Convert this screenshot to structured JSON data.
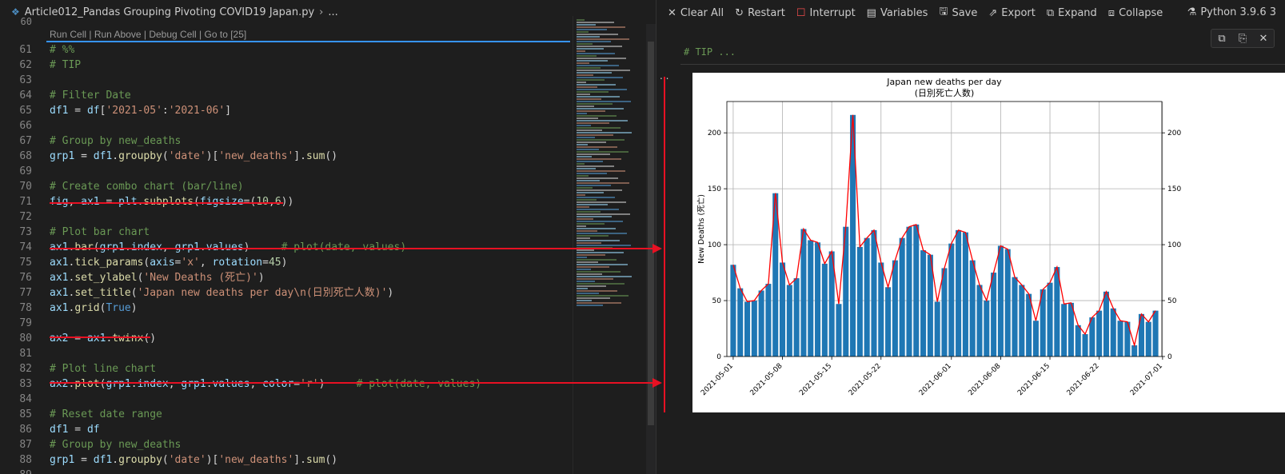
{
  "tab": {
    "filename": "Article012_Pandas Grouping Pivoting COVID19 Japan.py",
    "breadcrumb": "..."
  },
  "codelens": {
    "run_cell": "Run Cell",
    "run_above": "Run Above",
    "debug_cell": "Debug Cell",
    "goto": "Go to [25]",
    "sep": " | "
  },
  "prev_line_num": "60",
  "code_lines": [
    {
      "n": "61",
      "t": [
        [
          "# %%",
          "c"
        ]
      ]
    },
    {
      "n": "62",
      "t": [
        [
          "# TIP",
          "c"
        ]
      ]
    },
    {
      "n": "63",
      "t": []
    },
    {
      "n": "64",
      "t": [
        [
          "# Filter Date",
          "c"
        ]
      ]
    },
    {
      "n": "65",
      "t": [
        [
          "df1",
          "v"
        ],
        [
          " = ",
          "p"
        ],
        [
          "df",
          "v"
        ],
        [
          "[",
          "p"
        ],
        [
          "'2021-05'",
          "s"
        ],
        [
          ":",
          "p"
        ],
        [
          "'2021-06'",
          "s"
        ],
        [
          "]",
          "p"
        ]
      ]
    },
    {
      "n": "66",
      "t": []
    },
    {
      "n": "67",
      "t": [
        [
          "# Group by new_deaths",
          "c"
        ]
      ]
    },
    {
      "n": "68",
      "t": [
        [
          "grp1",
          "v"
        ],
        [
          " = ",
          "p"
        ],
        [
          "df1",
          "v"
        ],
        [
          ".",
          "p"
        ],
        [
          "groupby",
          "f"
        ],
        [
          "(",
          "p"
        ],
        [
          "'date'",
          "s"
        ],
        [
          ")[",
          "p"
        ],
        [
          "'new_deaths'",
          "s"
        ],
        [
          "].",
          "p"
        ],
        [
          "sum",
          "f"
        ],
        [
          "()",
          "p"
        ]
      ]
    },
    {
      "n": "69",
      "t": []
    },
    {
      "n": "70",
      "t": [
        [
          "# Create combo chart (bar/line)",
          "c"
        ]
      ]
    },
    {
      "n": "71",
      "t": [
        [
          "fig",
          "v"
        ],
        [
          ", ",
          "p"
        ],
        [
          "ax1",
          "v"
        ],
        [
          " = ",
          "p"
        ],
        [
          "plt",
          "v"
        ],
        [
          ".",
          "p"
        ],
        [
          "subplots",
          "f"
        ],
        [
          "(",
          "p"
        ],
        [
          "figsize",
          "v"
        ],
        [
          "=(",
          "p"
        ],
        [
          "10",
          "n"
        ],
        [
          ",",
          "p"
        ],
        [
          "6",
          "n"
        ],
        [
          "))",
          "p"
        ]
      ]
    },
    {
      "n": "72",
      "t": []
    },
    {
      "n": "73",
      "t": [
        [
          "# Plot bar chart",
          "c"
        ]
      ]
    },
    {
      "n": "74",
      "t": [
        [
          "ax1",
          "v"
        ],
        [
          ".",
          "p"
        ],
        [
          "bar",
          "f"
        ],
        [
          "(",
          "p"
        ],
        [
          "grp1",
          "v"
        ],
        [
          ".",
          "p"
        ],
        [
          "index",
          "v"
        ],
        [
          ", ",
          "p"
        ],
        [
          "grp1",
          "v"
        ],
        [
          ".",
          "p"
        ],
        [
          "values",
          "v"
        ],
        [
          ")",
          "p"
        ],
        [
          "     # plot(date, values)",
          "c"
        ]
      ]
    },
    {
      "n": "75",
      "t": [
        [
          "ax1",
          "v"
        ],
        [
          ".",
          "p"
        ],
        [
          "tick_params",
          "f"
        ],
        [
          "(",
          "p"
        ],
        [
          "axis",
          "v"
        ],
        [
          "=",
          "p"
        ],
        [
          "'x'",
          "s"
        ],
        [
          ", ",
          "p"
        ],
        [
          "rotation",
          "v"
        ],
        [
          "=",
          "p"
        ],
        [
          "45",
          "n"
        ],
        [
          ")",
          "p"
        ]
      ]
    },
    {
      "n": "76",
      "t": [
        [
          "ax1",
          "v"
        ],
        [
          ".",
          "p"
        ],
        [
          "set_ylabel",
          "f"
        ],
        [
          "(",
          "p"
        ],
        [
          "'New Deaths (死亡)'",
          "s"
        ],
        [
          ")",
          "p"
        ]
      ]
    },
    {
      "n": "77",
      "t": [
        [
          "ax1",
          "v"
        ],
        [
          ".",
          "p"
        ],
        [
          "set_title",
          "f"
        ],
        [
          "(",
          "p"
        ],
        [
          "'Japan new deaths per day\\n(日別死亡人数)'",
          "s"
        ],
        [
          ")",
          "p"
        ]
      ]
    },
    {
      "n": "78",
      "t": [
        [
          "ax1",
          "v"
        ],
        [
          ".",
          "p"
        ],
        [
          "grid",
          "f"
        ],
        [
          "(",
          "p"
        ],
        [
          "True",
          "k"
        ],
        [
          ")",
          "p"
        ]
      ]
    },
    {
      "n": "79",
      "t": []
    },
    {
      "n": "80",
      "t": [
        [
          "ax2",
          "v"
        ],
        [
          " = ",
          "p"
        ],
        [
          "ax1",
          "v"
        ],
        [
          ".",
          "p"
        ],
        [
          "twinx",
          "f"
        ],
        [
          "()",
          "p"
        ]
      ]
    },
    {
      "n": "81",
      "t": []
    },
    {
      "n": "82",
      "t": [
        [
          "# Plot line chart",
          "c"
        ]
      ]
    },
    {
      "n": "83",
      "t": [
        [
          "ax2",
          "v"
        ],
        [
          ".",
          "p"
        ],
        [
          "plot",
          "f"
        ],
        [
          "(",
          "p"
        ],
        [
          "grp1",
          "v"
        ],
        [
          ".",
          "p"
        ],
        [
          "index",
          "v"
        ],
        [
          ", ",
          "p"
        ],
        [
          "grp1",
          "v"
        ],
        [
          ".",
          "p"
        ],
        [
          "values",
          "v"
        ],
        [
          ", ",
          "p"
        ],
        [
          "color",
          "v"
        ],
        [
          "=",
          "p"
        ],
        [
          "'r'",
          "s"
        ],
        [
          ")",
          "p"
        ],
        [
          "     # plot(date, values)",
          "c"
        ]
      ]
    },
    {
      "n": "84",
      "t": []
    },
    {
      "n": "85",
      "t": [
        [
          "# Reset date range",
          "c"
        ]
      ]
    },
    {
      "n": "86",
      "t": [
        [
          "df1",
          "v"
        ],
        [
          " = ",
          "p"
        ],
        [
          "df",
          "v"
        ]
      ]
    },
    {
      "n": "87",
      "t": [
        [
          "# Group by new_deaths",
          "c"
        ]
      ]
    },
    {
      "n": "88",
      "t": [
        [
          "grp1",
          "v"
        ],
        [
          " = ",
          "p"
        ],
        [
          "df1",
          "v"
        ],
        [
          ".",
          "p"
        ],
        [
          "groupby",
          "f"
        ],
        [
          "(",
          "p"
        ],
        [
          "'date'",
          "s"
        ],
        [
          ")[",
          "p"
        ],
        [
          "'new_deaths'",
          "s"
        ],
        [
          "].",
          "p"
        ],
        [
          "sum",
          "f"
        ],
        [
          "()",
          "p"
        ]
      ]
    },
    {
      "n": "89",
      "t": []
    }
  ],
  "toolbar": {
    "clear_all": "Clear All",
    "restart": "Restart",
    "interrupt": "Interrupt",
    "variables": "Variables",
    "save": "Save",
    "export": "Export",
    "expand": "Expand",
    "collapse": "Collapse",
    "kernel": "Python 3.9.6 3"
  },
  "cell_header": "# TIP ...",
  "cell_dots": "...",
  "colors": {
    "accent": "#3794ff",
    "annotation": "#e81123",
    "bar": "#1f77b4",
    "line": "#ff0000"
  },
  "chart_data": {
    "type": "bar",
    "title": "Japan new deaths per day",
    "subtitle": "(日別死亡人数)",
    "ylabel": "New Deaths (死亡)",
    "ylim": [
      0,
      228
    ],
    "yticks": [
      0,
      50,
      100,
      150,
      200
    ],
    "grid": true,
    "secondary_axis": {
      "type": "line",
      "color": "#ff0000",
      "ylim": [
        0,
        228
      ],
      "yticks": [
        0,
        50,
        100,
        150,
        200
      ]
    },
    "x_start": "2021-05-01",
    "xticks": [
      "2021-05-01",
      "2021-05-08",
      "2021-05-15",
      "2021-05-22",
      "2021-06-01",
      "2021-06-08",
      "2021-06-15",
      "2021-06-22",
      "2021-07-01"
    ],
    "values": [
      82,
      61,
      49,
      50,
      59,
      65,
      146,
      84,
      64,
      70,
      114,
      104,
      102,
      83,
      94,
      47,
      116,
      216,
      98,
      106,
      113,
      84,
      62,
      86,
      106,
      116,
      118,
      95,
      91,
      49,
      79,
      101,
      113,
      111,
      86,
      64,
      50,
      75,
      99,
      96,
      71,
      64,
      56,
      32,
      60,
      66,
      80,
      47,
      48,
      28,
      20,
      35,
      41,
      58,
      43,
      32,
      31,
      10,
      38,
      31,
      41
    ],
    "value_note": "one bar/point per day from x_start"
  }
}
